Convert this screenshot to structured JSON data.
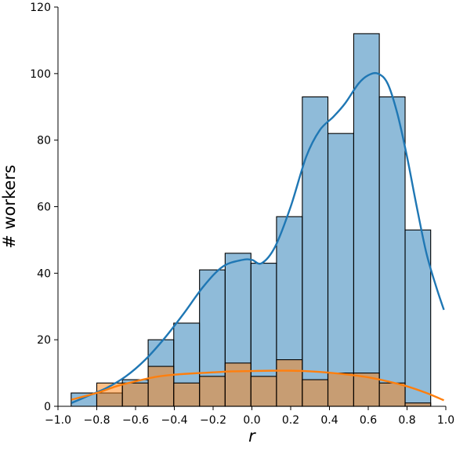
{
  "chart_data": {
    "type": "bar",
    "title": "",
    "xlabel": "r",
    "ylabel": "# workers",
    "xlim": [
      -1.0,
      1.0
    ],
    "ylim": [
      0,
      120
    ],
    "x_ticks": [
      "−1.0",
      "−0.8",
      "−0.6",
      "−0.4",
      "−0.2",
      "0.0",
      "0.2",
      "0.4",
      "0.6",
      "0.8",
      "1.0"
    ],
    "x_tick_values": [
      -1.0,
      -0.8,
      -0.6,
      -0.4,
      -0.2,
      0.0,
      0.2,
      0.4,
      0.6,
      0.8,
      1.0
    ],
    "y_ticks": [
      "0",
      "20",
      "40",
      "60",
      "80",
      "100",
      "120"
    ],
    "y_tick_values": [
      0,
      20,
      40,
      60,
      80,
      100,
      120
    ],
    "grid": false,
    "legend": "none",
    "bin_edges": [
      -0.932,
      -0.8,
      -0.668,
      -0.535,
      -0.403,
      -0.27,
      -0.138,
      -0.005,
      0.127,
      0.26,
      0.392,
      0.525,
      0.657,
      0.79,
      0.922
    ],
    "series": [
      {
        "color": "#1f77b4",
        "counts": [
          4,
          4,
          8,
          20,
          25,
          41,
          46,
          43,
          57,
          93,
          82,
          112,
          93,
          53
        ],
        "kde": {
          "x": [
            -0.93,
            -0.85,
            -0.75,
            -0.65,
            -0.55,
            -0.45,
            -0.35,
            -0.25,
            -0.15,
            -0.05,
            0.0,
            0.05,
            0.12,
            0.2,
            0.28,
            0.35,
            0.42,
            0.48,
            0.55,
            0.6,
            0.65,
            0.7,
            0.75,
            0.8,
            0.85,
            0.9,
            0.95,
            0.99
          ],
          "y": [
            1,
            3,
            5.5,
            9,
            14,
            20.5,
            28,
            36,
            42,
            44,
            44,
            43,
            48,
            60,
            75,
            83,
            87,
            91,
            97,
            99.5,
            100,
            97,
            88,
            75,
            60,
            46,
            36,
            29
          ]
        }
      },
      {
        "color": "#ff7f0e",
        "counts": [
          0,
          7,
          7,
          12,
          7,
          9,
          13,
          9,
          14,
          8,
          10,
          10,
          7,
          1
        ],
        "kde": {
          "x": [
            -0.93,
            -0.8,
            -0.7,
            -0.6,
            -0.5,
            -0.4,
            -0.3,
            -0.2,
            -0.1,
            0.0,
            0.1,
            0.2,
            0.3,
            0.4,
            0.5,
            0.6,
            0.7,
            0.8,
            0.9,
            0.99
          ],
          "y": [
            2,
            4,
            6,
            7.5,
            8.8,
            9.5,
            9.9,
            10.2,
            10.5,
            10.6,
            10.7,
            10.7,
            10.5,
            10.1,
            9.5,
            8.7,
            7.5,
            6,
            4,
            1.8
          ]
        }
      }
    ]
  }
}
